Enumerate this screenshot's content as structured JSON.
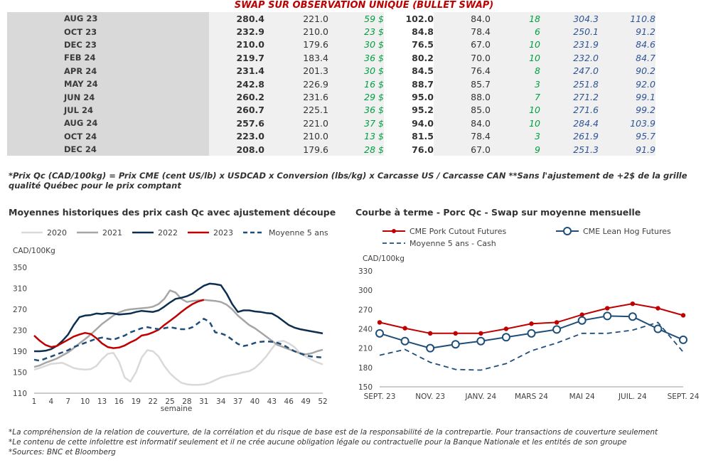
{
  "table": {
    "title": "SWAP SUR OBSERVATION UNIQUE (BULLET SWAP)",
    "rows": [
      [
        "AUG 23",
        "280.4",
        "221.0",
        "59 $",
        "102.0",
        "84.0",
        "18",
        "304.3",
        "110.8"
      ],
      [
        "OCT 23",
        "232.9",
        "210.0",
        "23 $",
        "84.8",
        "78.4",
        "6",
        "250.1",
        "91.2"
      ],
      [
        "DEC 23",
        "210.0",
        "179.6",
        "30 $",
        "76.5",
        "67.0",
        "10",
        "231.9",
        "84.6"
      ],
      [
        "FEB 24",
        "219.7",
        "183.4",
        "36 $",
        "80.2",
        "70.0",
        "10",
        "232.0",
        "84.7"
      ],
      [
        "APR 24",
        "231.4",
        "201.3",
        "30 $",
        "84.5",
        "76.4",
        "8",
        "247.0",
        "90.2"
      ],
      [
        "MAY 24",
        "242.8",
        "226.9",
        "16 $",
        "88.7",
        "85.7",
        "3",
        "251.8",
        "92.0"
      ],
      [
        "JUN 24",
        "260.2",
        "231.6",
        "29 $",
        "95.0",
        "88.0",
        "7",
        "271.2",
        "99.1"
      ],
      [
        "JUL 24",
        "260.7",
        "225.1",
        "36 $",
        "95.2",
        "85.0",
        "10",
        "271.6",
        "99.2"
      ],
      [
        "AUG 24",
        "257.6",
        "221.0",
        "37 $",
        "94.0",
        "84.0",
        "10",
        "284.4",
        "103.9"
      ],
      [
        "OCT 24",
        "223.0",
        "210.0",
        "13 $",
        "81.5",
        "78.4",
        "3",
        "261.9",
        "95.7"
      ],
      [
        "DEC 24",
        "208.0",
        "179.6",
        "28 $",
        "76.0",
        "67.0",
        "9",
        "251.3",
        "91.9"
      ]
    ],
    "note": "*Prix Qc (CAD/100kg) = Prix CME (cent US/lb) x USDCAD x Conversion (lbs/kg) x Carcasse US / Carcasse CAN **Sans l'ajustement de +2$ de la grille qualité Québec pour le prix comptant"
  },
  "chart_data": [
    {
      "type": "line",
      "title": "Moyennes historiques des prix cash Qc avec ajustement découpe",
      "ylabel": "CAD/100Kg",
      "xlabel": "semaine",
      "ylim": [
        110,
        350
      ],
      "yticks": [
        110,
        150,
        190,
        230,
        270,
        310,
        350
      ],
      "xticks": [
        1,
        4,
        7,
        10,
        13,
        16,
        19,
        22,
        25,
        28,
        31,
        34,
        37,
        40,
        43,
        46,
        49,
        52
      ],
      "grid": false,
      "legend": "top",
      "series": [
        {
          "name": "2020",
          "color": "#d9d9d9",
          "dash": false,
          "x": [
            1,
            2,
            3,
            4,
            5,
            6,
            7,
            8,
            9,
            10,
            11,
            12,
            13,
            14,
            15,
            16,
            17,
            18,
            19,
            20,
            21,
            22,
            23,
            24,
            25,
            26,
            27,
            28,
            29,
            30,
            31,
            32,
            33,
            34,
            35,
            36,
            37,
            38,
            39,
            40,
            41,
            42,
            43,
            44,
            45,
            46,
            47,
            48,
            49,
            50,
            51,
            52
          ],
          "values": [
            155,
            158,
            162,
            166,
            167,
            168,
            163,
            158,
            156,
            155,
            156,
            162,
            175,
            185,
            187,
            170,
            140,
            132,
            150,
            178,
            192,
            190,
            180,
            162,
            148,
            138,
            130,
            127,
            126,
            126,
            127,
            130,
            135,
            140,
            143,
            145,
            147,
            150,
            152,
            158,
            168,
            180,
            195,
            208,
            210,
            205,
            198,
            186,
            180,
            174,
            169,
            165
          ]
        },
        {
          "name": "2021",
          "color": "#a6a6a6",
          "dash": false,
          "x": [
            1,
            2,
            3,
            4,
            5,
            6,
            7,
            8,
            9,
            10,
            11,
            12,
            13,
            14,
            15,
            16,
            17,
            18,
            19,
            20,
            21,
            22,
            23,
            24,
            25,
            26,
            27,
            28,
            29,
            30,
            31,
            32,
            33,
            34,
            35,
            36,
            37,
            38,
            39,
            40,
            41,
            42,
            43,
            44,
            45,
            46,
            47,
            48,
            49,
            50,
            51,
            52
          ],
          "values": [
            160,
            163,
            168,
            172,
            176,
            182,
            188,
            196,
            205,
            213,
            222,
            232,
            242,
            250,
            258,
            264,
            268,
            270,
            271,
            272,
            273,
            275,
            280,
            290,
            306,
            302,
            290,
            284,
            286,
            287,
            288,
            287,
            286,
            284,
            279,
            270,
            258,
            249,
            240,
            234,
            226,
            218,
            210,
            202,
            198,
            194,
            190,
            186,
            184,
            186,
            190,
            193
          ]
        },
        {
          "name": "2022",
          "color": "#0d2f4f",
          "dash": false,
          "x": [
            1,
            2,
            3,
            4,
            5,
            6,
            7,
            8,
            9,
            10,
            11,
            12,
            13,
            14,
            15,
            16,
            17,
            18,
            19,
            20,
            21,
            22,
            23,
            24,
            25,
            26,
            27,
            28,
            29,
            30,
            31,
            32,
            33,
            34,
            35,
            36,
            37,
            38,
            39,
            40,
            41,
            42,
            43,
            44,
            45,
            46,
            47,
            48,
            49,
            50,
            51,
            52
          ],
          "values": [
            190,
            190,
            191,
            194,
            200,
            210,
            222,
            240,
            255,
            258,
            259,
            262,
            261,
            263,
            262,
            260,
            261,
            262,
            265,
            267,
            266,
            265,
            268,
            275,
            283,
            290,
            292,
            295,
            300,
            308,
            315,
            319,
            318,
            316,
            300,
            280,
            265,
            268,
            268,
            266,
            265,
            263,
            262,
            256,
            248,
            240,
            235,
            232,
            230,
            228,
            226,
            224
          ]
        },
        {
          "name": "2023",
          "color": "#c00000",
          "dash": false,
          "x": [
            1,
            2,
            3,
            4,
            5,
            6,
            7,
            8,
            9,
            10,
            11,
            12,
            13,
            14,
            15,
            16,
            17,
            18,
            19,
            20,
            21,
            22,
            23,
            24,
            25,
            26,
            27,
            28,
            29,
            30,
            31
          ],
          "values": [
            220,
            210,
            202,
            198,
            200,
            206,
            212,
            218,
            222,
            225,
            223,
            215,
            205,
            198,
            196,
            197,
            201,
            207,
            212,
            220,
            222,
            226,
            231,
            240,
            248,
            256,
            265,
            273,
            280,
            285,
            288
          ]
        },
        {
          "name": "Moyenne 5 ans",
          "color": "#1f4e79",
          "dash": true,
          "x": [
            1,
            2,
            3,
            4,
            5,
            6,
            7,
            8,
            9,
            10,
            11,
            12,
            13,
            14,
            15,
            16,
            17,
            18,
            19,
            20,
            21,
            22,
            23,
            24,
            25,
            26,
            27,
            28,
            29,
            30,
            31,
            32,
            33,
            34,
            35,
            36,
            37,
            38,
            39,
            40,
            41,
            42,
            43,
            44,
            45,
            46,
            47,
            48,
            49,
            50,
            51,
            52
          ],
          "values": [
            174,
            172,
            176,
            180,
            184,
            188,
            192,
            198,
            202,
            206,
            210,
            214,
            216,
            214,
            212,
            216,
            220,
            226,
            230,
            234,
            236,
            234,
            232,
            234,
            236,
            234,
            232,
            232,
            236,
            244,
            252,
            246,
            226,
            224,
            220,
            212,
            204,
            200,
            202,
            206,
            208,
            209,
            208,
            206,
            202,
            196,
            190,
            186,
            182,
            180,
            179,
            178
          ]
        }
      ]
    },
    {
      "type": "line",
      "title": "Courbe à terme - Porc Qc - Swap sur moyenne mensuelle",
      "ylabel": "CAD/100kg",
      "ylim": [
        150,
        330
      ],
      "yticks": [
        150,
        180,
        210,
        240,
        270,
        300,
        330
      ],
      "xticks_labels": [
        "SEPT. 23",
        "NOV. 23",
        "JANV. 24",
        "MARS 24",
        "MAI 24",
        "JUIL. 24",
        "SEPT. 24"
      ],
      "grid": false,
      "legend": "top",
      "categories": [
        "SEPT. 23",
        "OCT. 23",
        "NOV. 23",
        "DÉC. 23",
        "JANV. 24",
        "FÉVR. 24",
        "MARS 24",
        "AVR. 24",
        "MAI 24",
        "JUIN 24",
        "JUIL. 24",
        "AOÛT 24",
        "SEPT. 24"
      ],
      "series": [
        {
          "name": "CME Pork Cutout Futures",
          "color": "#c00000",
          "dash": false,
          "marker": "dot",
          "values": [
            250,
            241,
            233,
            233,
            233,
            240,
            248,
            250,
            262,
            272,
            279,
            272,
            261
          ]
        },
        {
          "name": "CME Lean Hog Futures",
          "color": "#1f4e79",
          "dash": false,
          "marker": "circle",
          "values": [
            233,
            221,
            210,
            216,
            221,
            227,
            233,
            239,
            253,
            260,
            259,
            240,
            223
          ]
        },
        {
          "name": "Moyenne 5 ans - Cash",
          "color": "#1f4e79",
          "dash": true,
          "marker": "none",
          "values": [
            199,
            208,
            188,
            177,
            176,
            186,
            206,
            218,
            233,
            233,
            238,
            250,
            204
          ]
        }
      ]
    }
  ],
  "footer": {
    "lines": [
      "*La compréhension de la relation de couverture, de la corrélation et du risque de base est de la responsabilité de la contrepartie. Pour transactions de couverture seulement",
      "*Le contenu de cette infolettre est informatif seulement et il ne crée aucune obligation légale ou contractuelle pour la Banque Nationale et les entités de son groupe",
      "*Sources: BNC et Bloomberg"
    ]
  }
}
